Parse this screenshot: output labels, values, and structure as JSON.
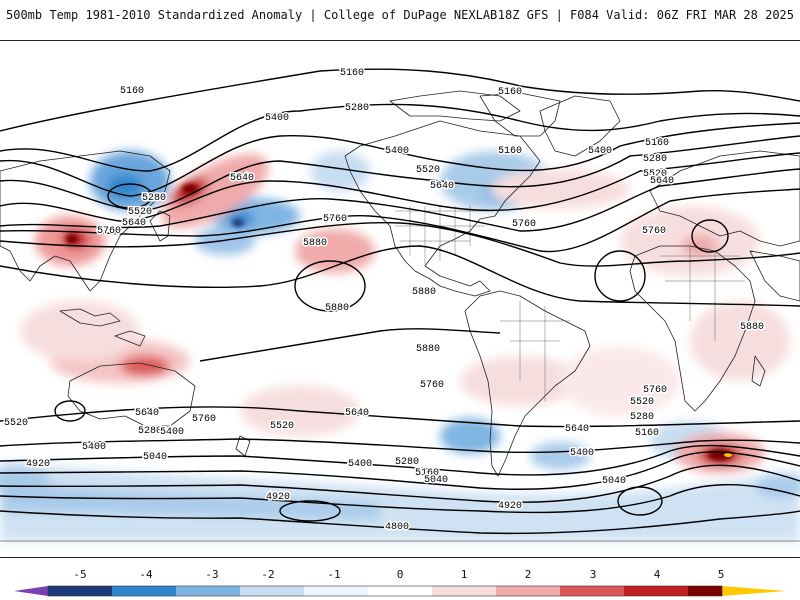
{
  "header": {
    "title": "500mb Temp 1981-2010 Standardized Anomaly | College of DuPage NEXLAB",
    "run_info": "18Z GFS | F084 Valid: 06Z FRI MAR 28 2025"
  },
  "map": {
    "contour_labels": [
      "5160",
      "5160",
      "5160",
      "5160",
      "5160",
      "5160",
      "5160",
      "5280",
      "5280",
      "5280",
      "5280",
      "5280",
      "5280",
      "5400",
      "5400",
      "5400",
      "5400",
      "5400",
      "5400",
      "5400",
      "5520",
      "5520",
      "5520",
      "5520",
      "5520",
      "5520",
      "5640",
      "5640",
      "5640",
      "5640",
      "5640",
      "5640",
      "5640",
      "5760",
      "5760",
      "5760",
      "5760",
      "5760",
      "5760",
      "5760",
      "5880",
      "5880",
      "5880",
      "5880",
      "5880",
      "5040",
      "5040",
      "5040",
      "4920",
      "4920",
      "4920",
      "4800"
    ],
    "colors": {
      "land_outline": "#222222",
      "contour": "#000000"
    }
  },
  "colorbar": {
    "ticks": [
      "-5",
      "-4",
      "-3",
      "-2",
      "-1",
      "0",
      "1",
      "2",
      "3",
      "4",
      "5"
    ],
    "colors": [
      "#7b3fb0",
      "#1f3a7a",
      "#2d86cc",
      "#7fb5e2",
      "#c7ddf1",
      "#eef5fb",
      "#ffffff",
      "#f7dede",
      "#efaaaa",
      "#dd5555",
      "#c21f1f",
      "#7a0000",
      "#ffc800"
    ]
  }
}
